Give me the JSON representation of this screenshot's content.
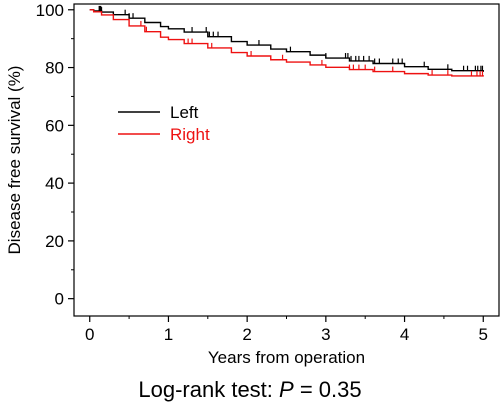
{
  "chart_data": {
    "type": "line",
    "title": "",
    "xlabel": "Years from operation",
    "ylabel": "Disease free survival (%)",
    "xlim": [
      -0.2,
      5.2
    ],
    "ylim": [
      -6,
      102
    ],
    "xticks": [
      0,
      1,
      2,
      3,
      4,
      5
    ],
    "xtick_labels": [
      "0",
      "1",
      "2",
      "3",
      "4",
      "5"
    ],
    "yticks": [
      0,
      20,
      40,
      60,
      80,
      100
    ],
    "ytick_labels": [
      "0",
      "20",
      "40",
      "60",
      "80",
      "100"
    ],
    "grid": false,
    "legend_position": "middle-left",
    "series": [
      {
        "name": "Left",
        "color": "#000000",
        "x": [
          0,
          0.05,
          0.15,
          0.3,
          0.5,
          0.7,
          0.9,
          1.0,
          1.2,
          1.5,
          1.8,
          2.0,
          2.3,
          2.5,
          2.8,
          3.0,
          3.3,
          3.6,
          4.0,
          4.3,
          4.6,
          5.0
        ],
        "y": [
          100,
          99.6,
          99.2,
          98.3,
          97.1,
          95.6,
          94.2,
          93.4,
          92.3,
          90.7,
          89.0,
          87.8,
          86.4,
          85.5,
          84.3,
          83.3,
          82.3,
          81.4,
          80.3,
          79.4,
          78.9,
          78.5
        ],
        "censor_x": [
          0.12,
          0.13,
          0.14,
          0.15,
          0.45,
          0.5,
          0.55,
          1.3,
          1.48,
          1.52,
          1.57,
          1.63,
          2.15,
          2.55,
          3.0,
          3.25,
          3.28,
          3.32,
          3.38,
          3.42,
          3.48,
          3.55,
          3.62,
          3.68,
          3.85,
          3.92,
          3.97,
          4.25,
          4.55,
          4.75,
          4.8,
          4.9,
          4.93,
          4.97,
          4.99
        ]
      },
      {
        "name": "Right",
        "color": "#ee1111",
        "x": [
          0,
          0.05,
          0.15,
          0.3,
          0.5,
          0.7,
          0.9,
          1.0,
          1.2,
          1.5,
          1.8,
          2.0,
          2.3,
          2.5,
          2.8,
          3.0,
          3.3,
          3.6,
          4.0,
          4.3,
          4.6,
          5.0
        ],
        "y": [
          100,
          99.3,
          98.2,
          96.6,
          94.4,
          92.4,
          90.5,
          89.7,
          88.3,
          86.8,
          85.2,
          84.0,
          82.7,
          81.9,
          80.9,
          80.1,
          79.3,
          78.6,
          77.9,
          77.4,
          77.1,
          76.9
        ],
        "censor_x": [
          0.65,
          0.72,
          1.25,
          1.3,
          1.55,
          2.05,
          2.45,
          2.95,
          3.3,
          3.35,
          3.42,
          3.5,
          3.62,
          3.85,
          4.35,
          4.55,
          4.85,
          4.92,
          4.96,
          4.99
        ]
      }
    ]
  },
  "footnote": {
    "prefix": "Log-rank test: ",
    "p_symbol": "P",
    "suffix": " = 0.35"
  }
}
